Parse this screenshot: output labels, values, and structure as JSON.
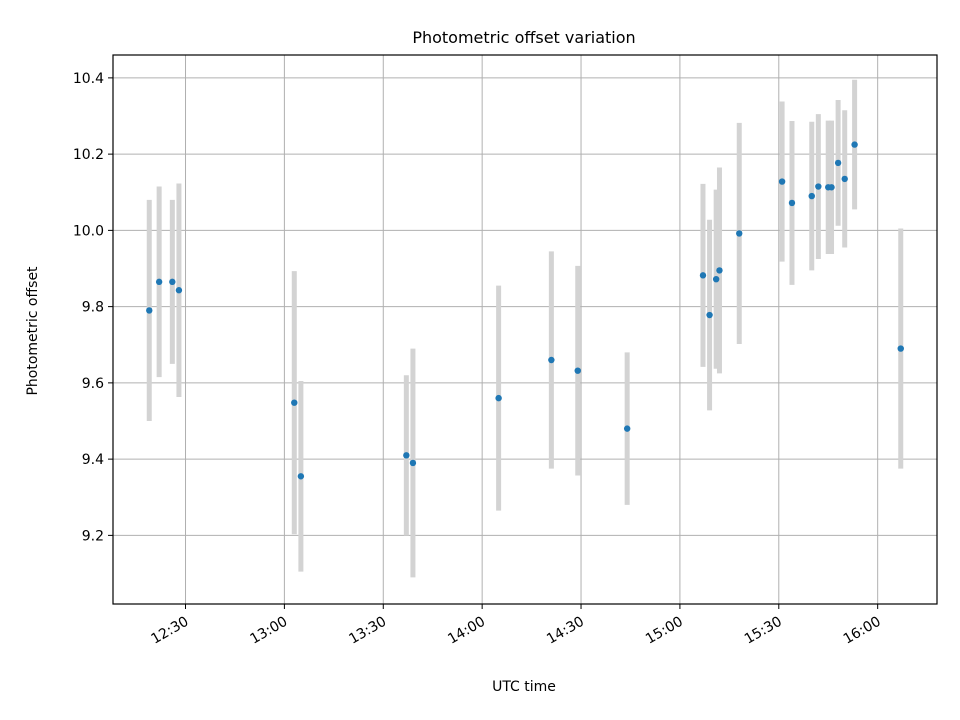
{
  "chart_data": {
    "type": "scatter",
    "title": "Photometric offset variation",
    "xlabel": "UTC time",
    "ylabel": "Photometric offset",
    "grid": true,
    "legend": "none",
    "x_ticks": [
      "12:30",
      "13:00",
      "13:30",
      "14:00",
      "14:30",
      "15:00",
      "15:30",
      "16:00"
    ],
    "y_ticks": [
      "9.2",
      "9.4",
      "9.6",
      "9.8",
      "10.0",
      "10.2",
      "10.4"
    ],
    "xlim": [
      "12:08",
      "16:18"
    ],
    "ylim": [
      9.02,
      10.46
    ],
    "colors": {
      "point": "#1f77b4",
      "errorbar": "#d3d3d3",
      "grid": "#b0b0b0"
    },
    "series": [
      {
        "points": [
          {
            "x": "12:19",
            "y": 9.79,
            "err": 0.29
          },
          {
            "x": "12:22",
            "y": 9.865,
            "err": 0.25
          },
          {
            "x": "12:26",
            "y": 9.865,
            "err": 0.215
          },
          {
            "x": "12:28",
            "y": 9.843,
            "err": 0.28
          },
          {
            "x": "13:03",
            "y": 9.548,
            "err": 0.345
          },
          {
            "x": "13:05",
            "y": 9.355,
            "err": 0.25
          },
          {
            "x": "13:37",
            "y": 9.41,
            "err": 0.21
          },
          {
            "x": "13:39",
            "y": 9.39,
            "err": 0.3
          },
          {
            "x": "14:05",
            "y": 9.56,
            "err": 0.295
          },
          {
            "x": "14:21",
            "y": 9.66,
            "err": 0.285
          },
          {
            "x": "14:29",
            "y": 9.632,
            "err": 0.275
          },
          {
            "x": "14:44",
            "y": 9.48,
            "err": 0.2
          },
          {
            "x": "15:07",
            "y": 9.882,
            "err": 0.24
          },
          {
            "x": "15:09",
            "y": 9.778,
            "err": 0.25
          },
          {
            "x": "15:11",
            "y": 9.872,
            "err": 0.235
          },
          {
            "x": "15:12",
            "y": 9.895,
            "err": 0.27
          },
          {
            "x": "15:18",
            "y": 9.992,
            "err": 0.29
          },
          {
            "x": "15:31",
            "y": 10.128,
            "err": 0.21
          },
          {
            "x": "15:34",
            "y": 10.072,
            "err": 0.215
          },
          {
            "x": "15:40",
            "y": 10.09,
            "err": 0.195
          },
          {
            "x": "15:42",
            "y": 10.115,
            "err": 0.19
          },
          {
            "x": "15:45",
            "y": 10.113,
            "err": 0.175
          },
          {
            "x": "15:46",
            "y": 10.113,
            "err": 0.175
          },
          {
            "x": "15:48",
            "y": 10.177,
            "err": 0.165
          },
          {
            "x": "15:50",
            "y": 10.135,
            "err": 0.18
          },
          {
            "x": "15:53",
            "y": 10.225,
            "err": 0.17
          },
          {
            "x": "16:07",
            "y": 9.69,
            "err": 0.315
          }
        ]
      }
    ]
  }
}
